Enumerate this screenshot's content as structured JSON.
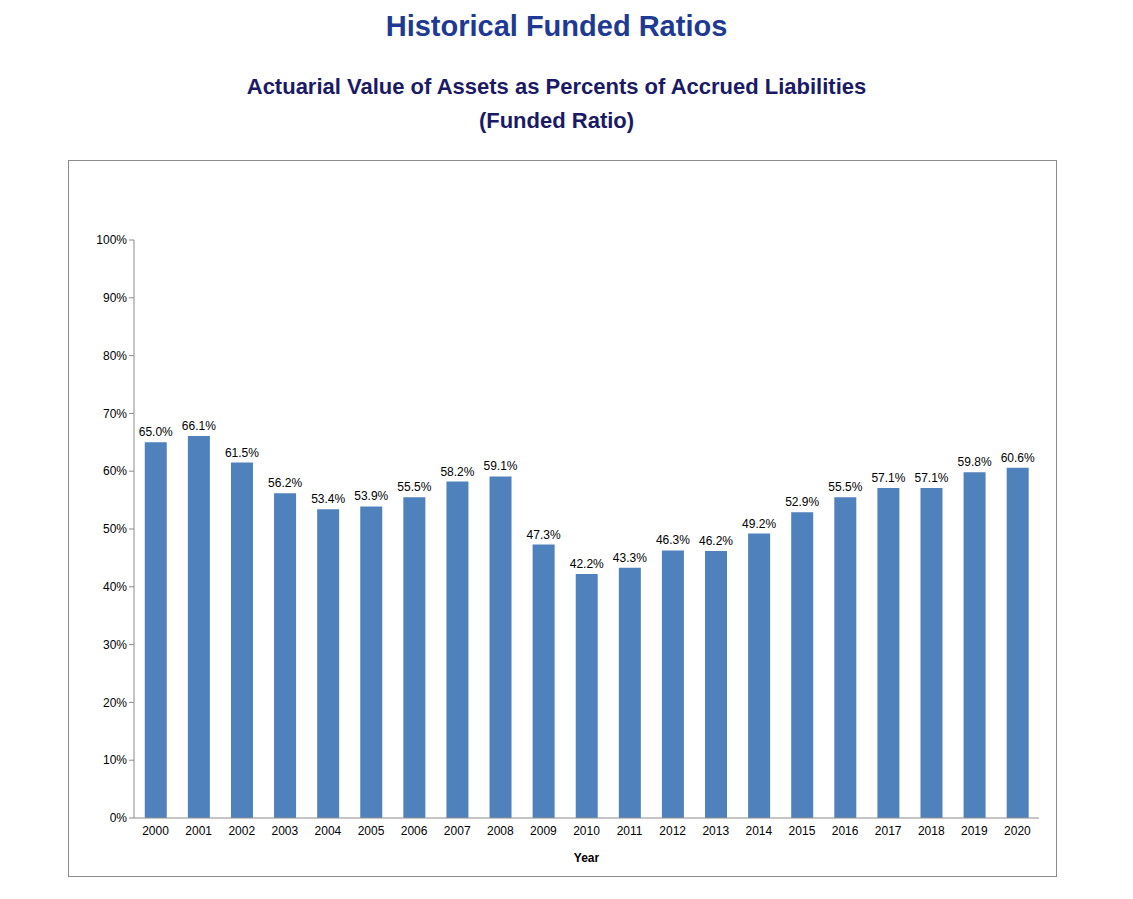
{
  "chart_data": {
    "type": "bar",
    "title": "Historical Funded Ratios",
    "subtitle": [
      "Actuarial Value of Assets as Percents of Accrued Liabilities",
      "(Funded Ratio)"
    ],
    "x_label": "Year",
    "categories": [
      "2000",
      "2001",
      "2002",
      "2003",
      "2004",
      "2005",
      "2006",
      "2007",
      "2008",
      "2009",
      "2010",
      "2011",
      "2012",
      "2013",
      "2014",
      "2015",
      "2016",
      "2017",
      "2018",
      "2019",
      "2020"
    ],
    "values": [
      65.0,
      66.1,
      61.5,
      56.2,
      53.4,
      53.9,
      55.5,
      58.2,
      59.1,
      47.3,
      42.2,
      43.3,
      46.3,
      46.2,
      49.2,
      52.9,
      55.5,
      57.1,
      57.1,
      59.8,
      60.6
    ],
    "value_labels": [
      "65.0%",
      "66.1%",
      "61.5%",
      "56.2%",
      "53.4%",
      "53.9%",
      "55.5%",
      "58.2%",
      "59.1%",
      "47.3%",
      "42.2%",
      "43.3%",
      "46.3%",
      "46.2%",
      "49.2%",
      "52.9%",
      "55.5%",
      "57.1%",
      "57.1%",
      "59.8%",
      "60.6%"
    ],
    "color": "#4f81bd",
    "ylim": [
      0,
      100
    ],
    "yticks": [
      {
        "value": 0,
        "label": "0%"
      },
      {
        "value": 10,
        "label": "10%"
      },
      {
        "value": 20,
        "label": "20%"
      },
      {
        "value": 30,
        "label": "30%"
      },
      {
        "value": 40,
        "label": "40%"
      },
      {
        "value": 50,
        "label": "50%"
      },
      {
        "value": 60,
        "label": "60%"
      },
      {
        "value": 70,
        "label": "70%"
      },
      {
        "value": 80,
        "label": "80%"
      },
      {
        "value": 90,
        "label": "90%"
      },
      {
        "value": 100,
        "label": "100%"
      }
    ],
    "grid": false,
    "data_labels": true
  }
}
